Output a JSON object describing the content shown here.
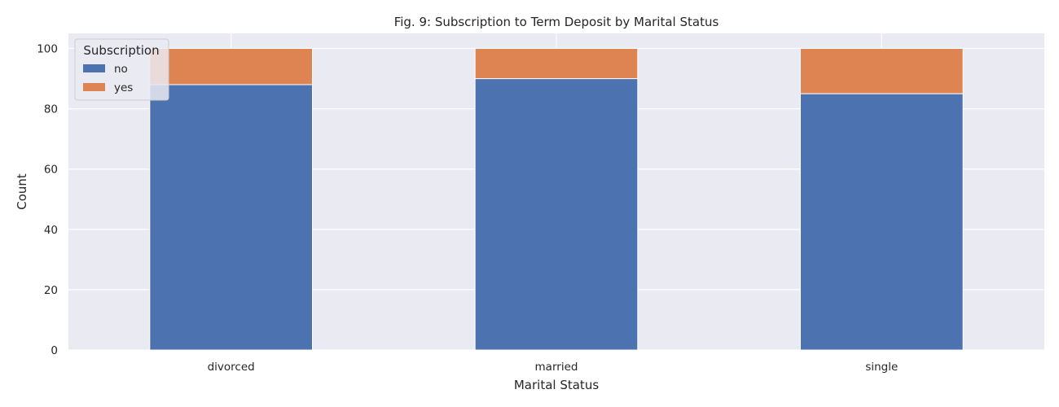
{
  "chart_data": {
    "type": "bar",
    "stacked": true,
    "title": "Fig. 9: Subscription to Term Deposit by Marital Status",
    "xlabel": "Marital Status",
    "ylabel": "Count",
    "categories": [
      "divorced",
      "married",
      "single"
    ],
    "series": [
      {
        "name": "no",
        "values": [
          88,
          90,
          85
        ],
        "color": "#4c72b0"
      },
      {
        "name": "yes",
        "values": [
          12,
          10,
          15
        ],
        "color": "#dd8452"
      }
    ],
    "ylim": [
      0,
      105
    ],
    "yticks": [
      0,
      20,
      40,
      60,
      80,
      100
    ],
    "grid": true,
    "legend": {
      "title": "Subscription",
      "position": "top-left"
    },
    "colors": {
      "background": "#eaeaf2",
      "grid": "#ffffff"
    }
  }
}
